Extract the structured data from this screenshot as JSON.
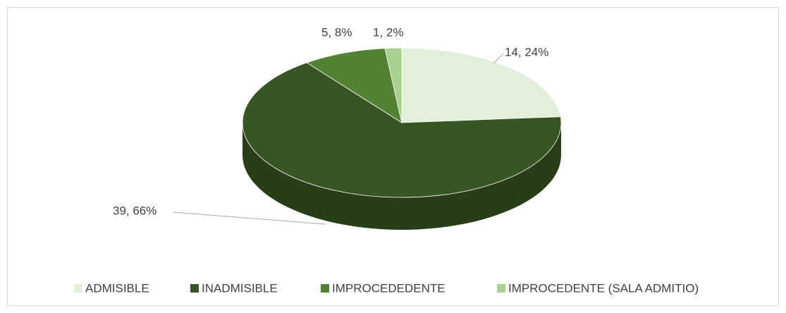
{
  "chart_data": {
    "type": "pie3d",
    "categories": [
      "ADMISIBLE",
      "INADMISIBLE",
      "IMPROCEDEDENTE",
      "IMPROCEDENTE (SALA ADMITIO)"
    ],
    "values": [
      14,
      39,
      5,
      1
    ],
    "value_labels": [
      "14, 24%",
      "39, 66%",
      "5, 8%",
      "1, 2%"
    ],
    "colors": [
      "#e2efda",
      "#375623",
      "#548235",
      "#a9d08e"
    ],
    "legend": "bottom"
  }
}
